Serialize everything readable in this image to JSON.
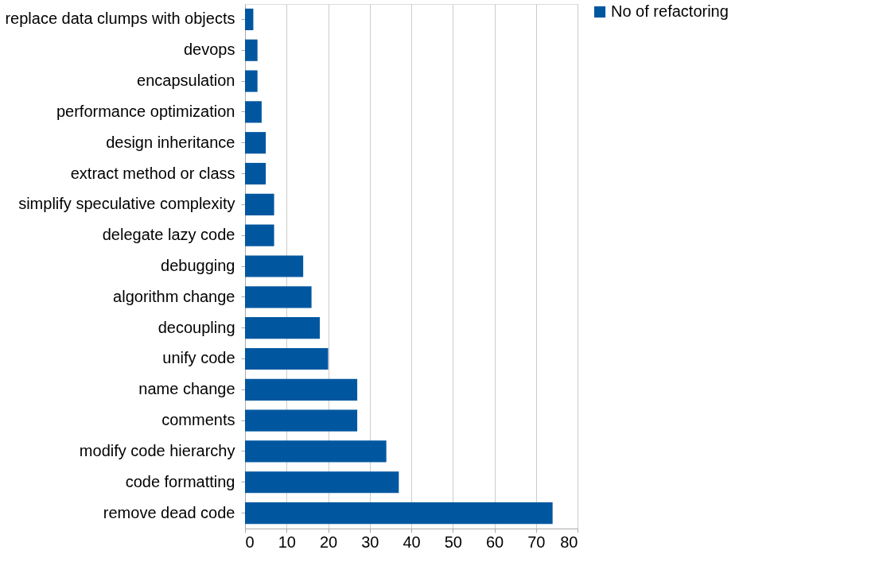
{
  "chart_data": {
    "type": "bar",
    "orientation": "horizontal",
    "categories": [
      "replace data clumps with objects",
      "devops",
      "encapsulation",
      "performance optimization",
      "design inheritance",
      "extract method or class",
      "simplify speculative complexity",
      "delegate lazy code",
      "debugging",
      "algorithm change",
      "decoupling",
      "unify code",
      "name change",
      "comments",
      "modify code hierarchy",
      "code formatting",
      "remove dead code"
    ],
    "series": [
      {
        "name": "No of refactoring",
        "color": "#0057a0",
        "values": [
          2,
          3,
          3,
          4,
          5,
          5,
          7,
          7,
          14,
          16,
          18,
          20,
          27,
          27,
          34,
          37,
          74
        ]
      }
    ],
    "xlim": [
      0,
      80
    ],
    "xticks": [
      0,
      10,
      20,
      30,
      40,
      50,
      60,
      70,
      80
    ],
    "grid": "x",
    "legend": "right"
  }
}
